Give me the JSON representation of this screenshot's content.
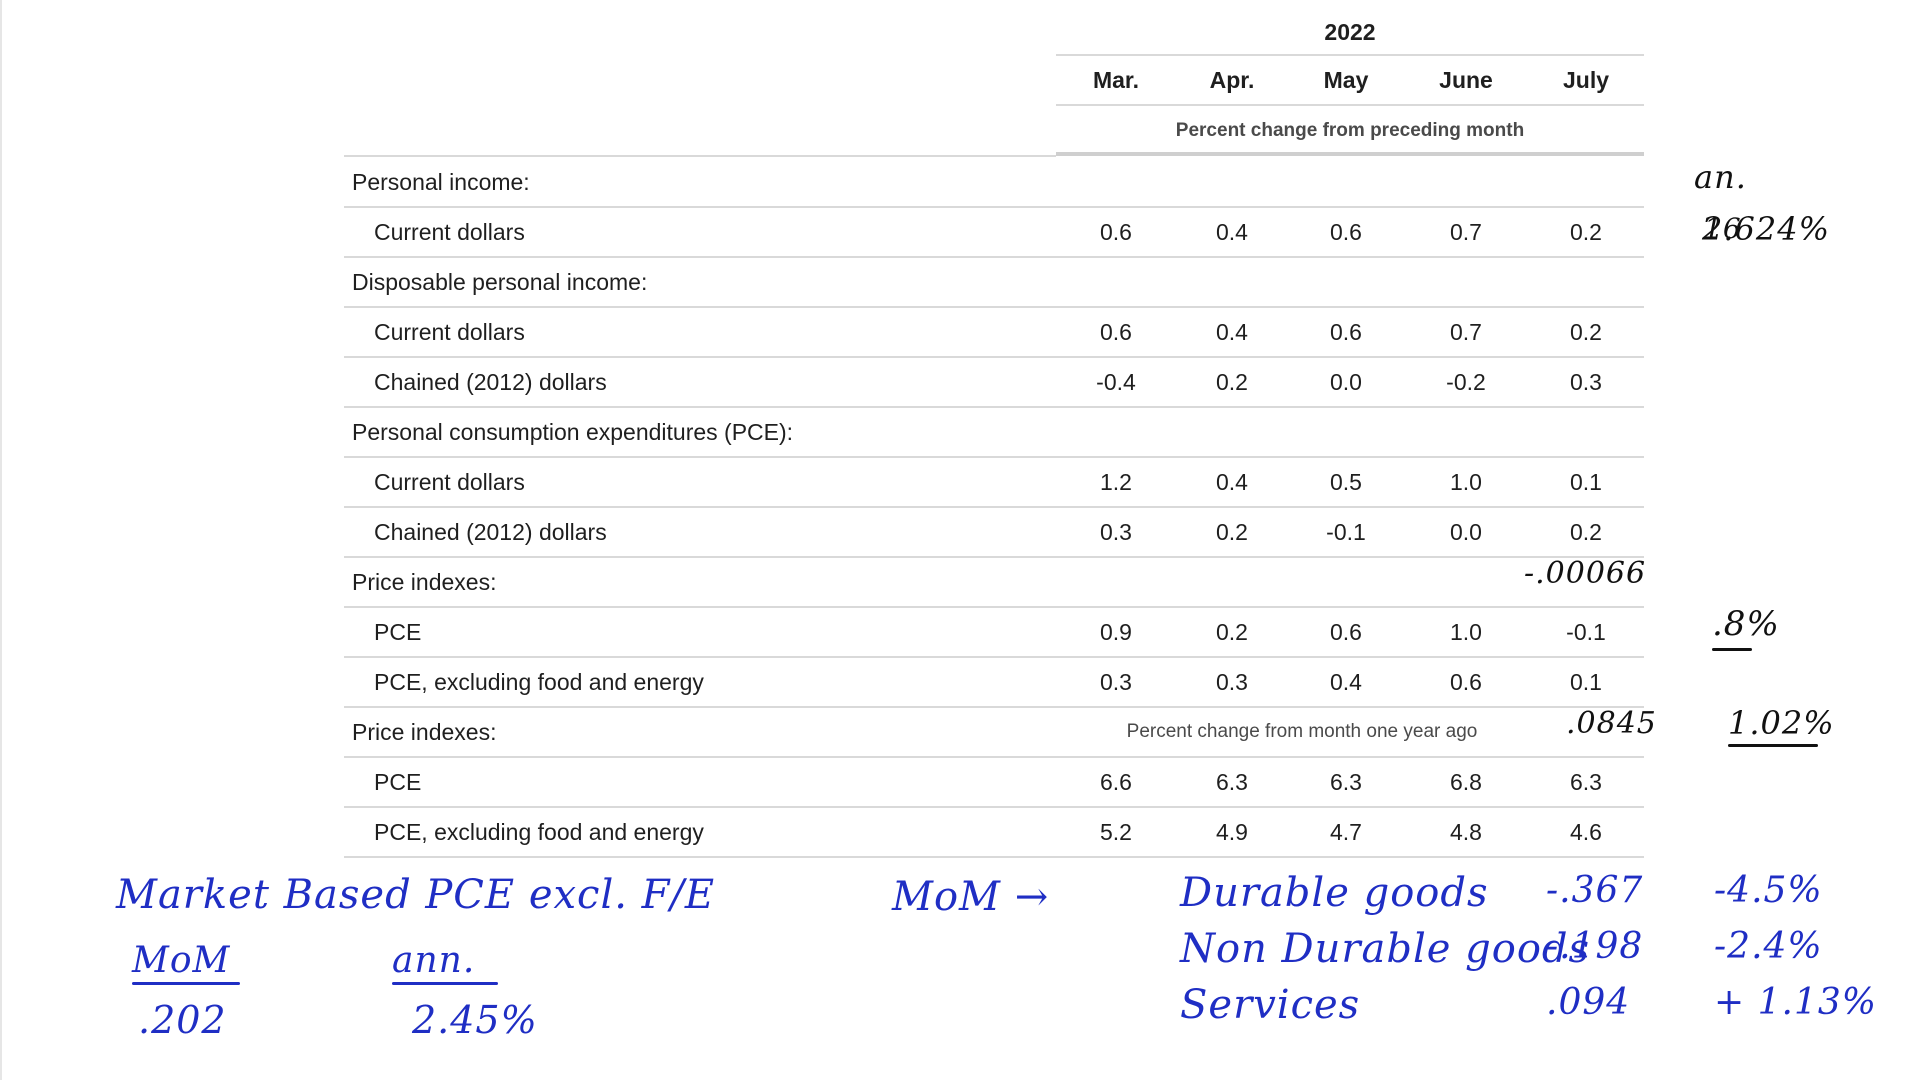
{
  "table": {
    "year": "2022",
    "months": [
      "Mar.",
      "Apr.",
      "May",
      "June",
      "July"
    ],
    "unit_header": "Percent change from preceding month",
    "rows": [
      {
        "label": "Personal income:",
        "values": []
      },
      {
        "label": "Current dollars",
        "values": [
          "0.6",
          "0.4",
          "0.6",
          "0.7",
          "0.2"
        ]
      },
      {
        "label": "Disposable personal income:",
        "values": []
      },
      {
        "label": "Current dollars",
        "values": [
          "0.6",
          "0.4",
          "0.6",
          "0.7",
          "0.2"
        ]
      },
      {
        "label": "Chained (2012) dollars",
        "values": [
          "-0.4",
          "0.2",
          "0.0",
          "-0.2",
          "0.3"
        ]
      },
      {
        "label": "Personal consumption expenditures (PCE):",
        "values": []
      },
      {
        "label": "Current dollars",
        "values": [
          "1.2",
          "0.4",
          "0.5",
          "1.0",
          "0.1"
        ]
      },
      {
        "label": "Chained (2012) dollars",
        "values": [
          "0.3",
          "0.2",
          "-0.1",
          "0.0",
          "0.2"
        ]
      },
      {
        "label": "Price indexes:",
        "values": []
      },
      {
        "label": "PCE",
        "values": [
          "0.9",
          "0.2",
          "0.6",
          "1.0",
          "-0.1"
        ]
      },
      {
        "label": "PCE, excluding food and energy",
        "values": [
          "0.3",
          "0.3",
          "0.4",
          "0.6",
          "0.1"
        ]
      },
      {
        "label": "Price indexes:",
        "values": [],
        "note": "Percent change from month one year ago"
      },
      {
        "label": "PCE",
        "values": [
          "6.6",
          "6.3",
          "6.3",
          "6.8",
          "6.3"
        ]
      },
      {
        "label": "PCE, excluding food and energy",
        "values": [
          "5.2",
          "4.9",
          "4.7",
          "4.8",
          "4.6"
        ]
      }
    ]
  },
  "annotations": {
    "income_suffix": "16",
    "ann_label": "an.",
    "ann_value": "2.624%",
    "neg_value": "-.00066",
    "pce_ann": ".8%",
    "core_mom": ".0845",
    "core_ann": "1.02%",
    "market_title": "Market Based PCE   excl. F/E",
    "mom_label": "MoM",
    "ann_label2": "ann.",
    "mom_value": ".202",
    "ann_value2": "2.45%",
    "mom_arrow": "MoM →",
    "goods": [
      {
        "name": "Durable goods",
        "mom": "-.367",
        "ann": "-4.5%"
      },
      {
        "name": "Non Durable goods",
        "mom": "-.198",
        "ann": "-2.4%"
      },
      {
        "name": "Services",
        "mom": ".094",
        "ann": "+ 1.13%"
      }
    ]
  }
}
